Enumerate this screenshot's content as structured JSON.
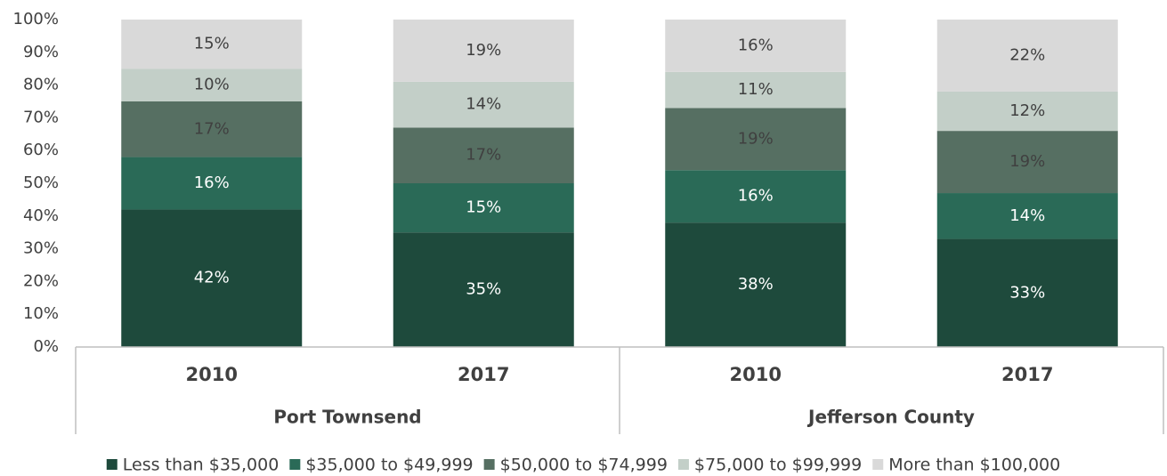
{
  "chart_data": {
    "type": "stacked_bar",
    "categories": [
      "2010",
      "2017",
      "2010",
      "2017"
    ],
    "groups": [
      "Port Townsend",
      "Jefferson County"
    ],
    "series": [
      {
        "name": "Less than $35,000",
        "color": "#1e4a3c",
        "values": [
          42,
          35,
          38,
          33
        ],
        "value_labels": [
          "42%",
          "35%",
          "38%",
          "33%"
        ]
      },
      {
        "name": "$35,000 to $49,999",
        "color": "#2a6a57",
        "values": [
          16,
          15,
          16,
          14
        ],
        "value_labels": [
          "16%",
          "15%",
          "16%",
          "14%"
        ]
      },
      {
        "name": "$50,000 to $74,999",
        "color": "#566f62",
        "values": [
          17,
          17,
          19,
          19
        ],
        "value_labels": [
          "17%",
          "17%",
          "19%",
          "19%"
        ]
      },
      {
        "name": "$75,000 to $99,999",
        "color": "#c3cfc8",
        "values": [
          10,
          14,
          11,
          12
        ],
        "value_labels": [
          "10%",
          "14%",
          "11%",
          "12%"
        ]
      },
      {
        "name": "More than $100,000",
        "color": "#d9d9d9",
        "values": [
          15,
          19,
          16,
          22
        ],
        "value_labels": [
          "15%",
          "19%",
          "16%",
          "22%"
        ]
      }
    ],
    "ylim": [
      0,
      100
    ],
    "yticks": [
      {
        "value": 0,
        "label": "0%"
      },
      {
        "value": 10,
        "label": "10%"
      },
      {
        "value": 20,
        "label": "20%"
      },
      {
        "value": 30,
        "label": "30%"
      },
      {
        "value": 40,
        "label": "40%"
      },
      {
        "value": 50,
        "label": "50%"
      },
      {
        "value": 60,
        "label": "60%"
      },
      {
        "value": 70,
        "label": "70%"
      },
      {
        "value": 80,
        "label": "80%"
      },
      {
        "value": 90,
        "label": "90%"
      },
      {
        "value": 100,
        "label": "100%"
      }
    ],
    "grid": false,
    "legend": "bottom"
  }
}
